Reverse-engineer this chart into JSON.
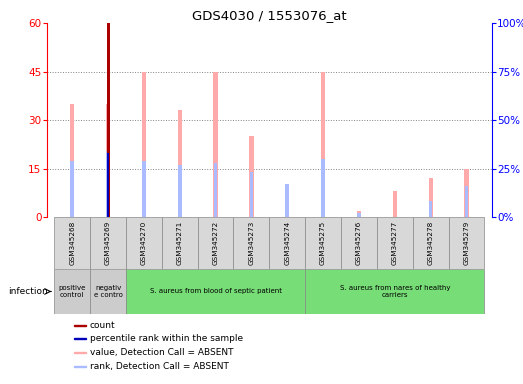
{
  "title": "GDS4030 / 1553076_at",
  "samples": [
    "GSM345268",
    "GSM345269",
    "GSM345270",
    "GSM345271",
    "GSM345272",
    "GSM345273",
    "GSM345274",
    "GSM345275",
    "GSM345276",
    "GSM345277",
    "GSM345278",
    "GSM345279"
  ],
  "value_absent": [
    35,
    null,
    45,
    33,
    45,
    25,
    10,
    45,
    2,
    8,
    12,
    15
  ],
  "rank_absent": [
    29,
    null,
    29,
    27,
    28,
    23,
    17,
    30,
    2,
    null,
    8,
    16
  ],
  "count": [
    null,
    60,
    null,
    null,
    null,
    null,
    null,
    null,
    null,
    null,
    null,
    null
  ],
  "percentile": [
    null,
    33,
    null,
    null,
    null,
    null,
    null,
    null,
    null,
    null,
    null,
    null
  ],
  "value_absent_idx1": 35,
  "rank_absent_idx1": 34,
  "ylim_left": [
    0,
    60
  ],
  "ylim_right": [
    0,
    100
  ],
  "yticks_left": [
    0,
    15,
    30,
    45,
    60
  ],
  "yticks_right": [
    0,
    25,
    50,
    75,
    100
  ],
  "groups": [
    {
      "label": "positive\ncontrol",
      "start": 0,
      "end": 1,
      "color": "#cccccc"
    },
    {
      "label": "negativ\ne contro",
      "start": 1,
      "end": 2,
      "color": "#cccccc"
    },
    {
      "label": "S. aureus from blood of septic patient",
      "start": 2,
      "end": 7,
      "color": "#77dd77"
    },
    {
      "label": "S. aureus from nares of healthy\ncarriers",
      "start": 7,
      "end": 12,
      "color": "#77dd77"
    }
  ],
  "color_value_absent": "#ffaaaa",
  "color_rank_absent": "#aabbff",
  "color_count": "#aa0000",
  "color_percentile": "#0000bb",
  "thin_bar_width": 0.12,
  "rank_bar_width": 0.1
}
